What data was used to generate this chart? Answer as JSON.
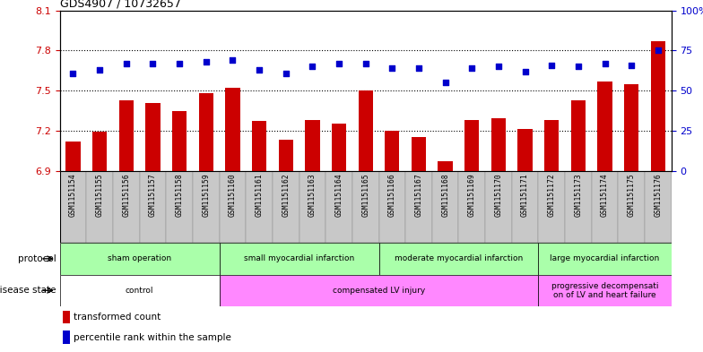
{
  "title": "GDS4907 / 10732657",
  "samples": [
    "GSM1151154",
    "GSM1151155",
    "GSM1151156",
    "GSM1151157",
    "GSM1151158",
    "GSM1151159",
    "GSM1151160",
    "GSM1151161",
    "GSM1151162",
    "GSM1151163",
    "GSM1151164",
    "GSM1151165",
    "GSM1151166",
    "GSM1151167",
    "GSM1151168",
    "GSM1151169",
    "GSM1151170",
    "GSM1151171",
    "GSM1151172",
    "GSM1151173",
    "GSM1151174",
    "GSM1151175",
    "GSM1151176"
  ],
  "transformed_count": [
    7.12,
    7.19,
    7.43,
    7.41,
    7.35,
    7.48,
    7.52,
    7.27,
    7.13,
    7.28,
    7.25,
    7.5,
    7.2,
    7.15,
    6.97,
    7.28,
    7.29,
    7.21,
    7.28,
    7.43,
    7.57,
    7.55,
    7.87
  ],
  "percentile_rank": [
    61,
    63,
    67,
    67,
    67,
    68,
    69,
    63,
    61,
    65,
    67,
    67,
    64,
    64,
    55,
    64,
    65,
    62,
    66,
    65,
    67,
    66,
    75
  ],
  "ylim_left": [
    6.9,
    8.1
  ],
  "ylim_right": [
    0,
    100
  ],
  "yticks_left": [
    6.9,
    7.2,
    7.5,
    7.8,
    8.1
  ],
  "ytick_labels_left": [
    "6.9",
    "7.2",
    "7.5",
    "7.8",
    "8.1"
  ],
  "yticks_right": [
    0,
    25,
    50,
    75,
    100
  ],
  "ytick_labels_right": [
    "0",
    "25",
    "50",
    "75",
    "100%"
  ],
  "hlines": [
    7.2,
    7.5,
    7.8
  ],
  "bar_color": "#cc0000",
  "dot_color": "#0000cc",
  "bar_bottom": 6.9,
  "protocol_groups": [
    {
      "label": "sham operation",
      "start": 0,
      "end": 5,
      "color": "#aaffaa"
    },
    {
      "label": "small myocardial infarction",
      "start": 6,
      "end": 11,
      "color": "#aaffaa"
    },
    {
      "label": "moderate myocardial infarction",
      "start": 12,
      "end": 17,
      "color": "#aaffaa"
    },
    {
      "label": "large myocardial infarction",
      "start": 18,
      "end": 22,
      "color": "#aaffaa"
    }
  ],
  "disease_groups": [
    {
      "label": "control",
      "start": 0,
      "end": 5,
      "color": "#ffffff"
    },
    {
      "label": "compensated LV injury",
      "start": 6,
      "end": 17,
      "color": "#ff88ff"
    },
    {
      "label": "progressive decompensati\non of LV and heart failure",
      "start": 18,
      "end": 22,
      "color": "#ff88ff"
    }
  ],
  "protocol_label": "protocol",
  "disease_label": "disease state",
  "legend_bar_label": "transformed count",
  "legend_dot_label": "percentile rank within the sample",
  "bg_color": "#ffffff",
  "tick_label_color_left": "#cc0000",
  "tick_label_color_right": "#0000cc",
  "label_band_color": "#c8c8c8"
}
